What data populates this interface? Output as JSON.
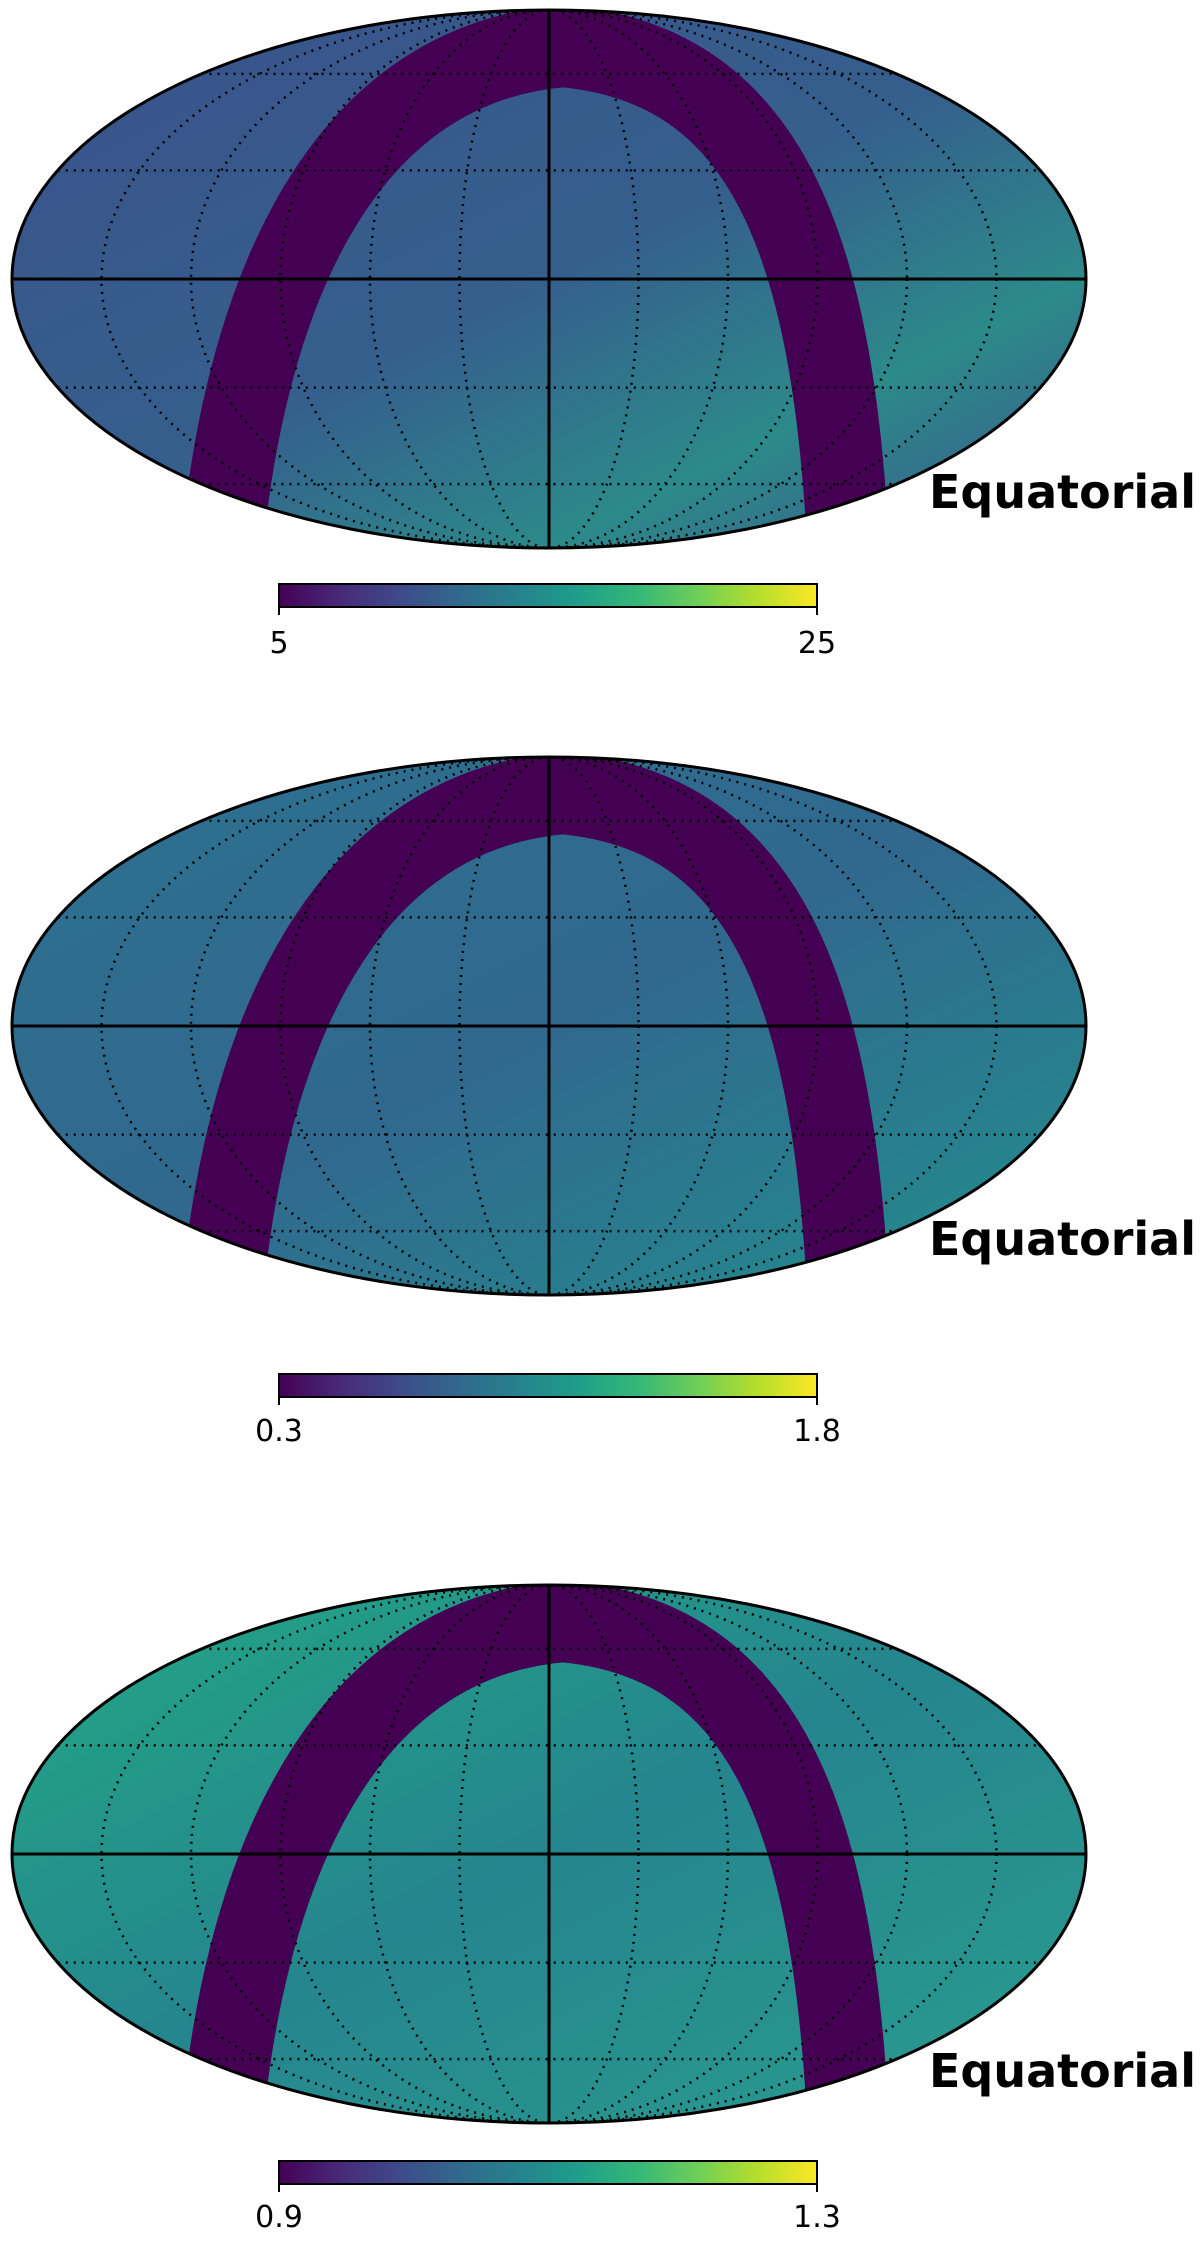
{
  "chart_data": [
    {
      "type": "mollweide",
      "label": "Equatorial",
      "colormap": "viridis",
      "colorbar_lim": [
        5,
        25
      ],
      "colorbar_ticks": [
        5,
        25
      ]
    },
    {
      "type": "mollweide",
      "label": "Equatorial",
      "colormap": "viridis",
      "colorbar_lim": [
        0.3,
        1.8
      ],
      "colorbar_ticks": [
        0.3,
        1.8
      ]
    },
    {
      "type": "mollweide",
      "label": "Equatorial",
      "colormap": "viridis",
      "colorbar_lim": [
        0.9,
        1.3
      ],
      "colorbar_ticks": [
        0.9,
        1.3
      ]
    }
  ]
}
